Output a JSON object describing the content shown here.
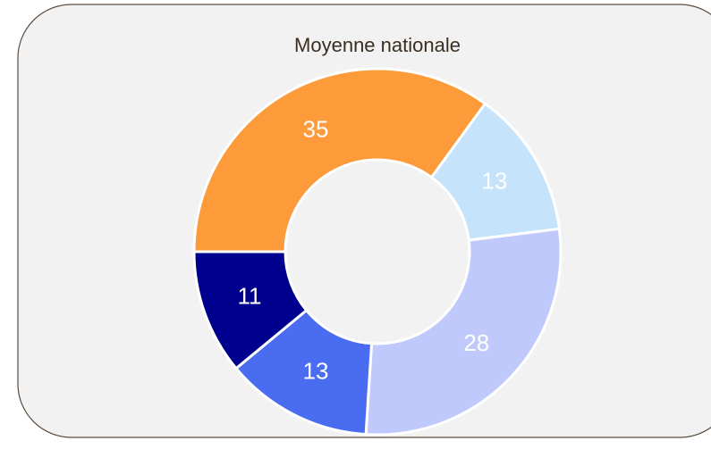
{
  "chart_data": {
    "type": "donut",
    "title": "Moyenne nationale",
    "values": [
      35,
      13,
      28,
      13,
      11
    ],
    "colors": [
      "#fd9a3a",
      "#c5e3fb",
      "#c0c9fb",
      "#4a6cf0",
      "#00008f"
    ]
  }
}
